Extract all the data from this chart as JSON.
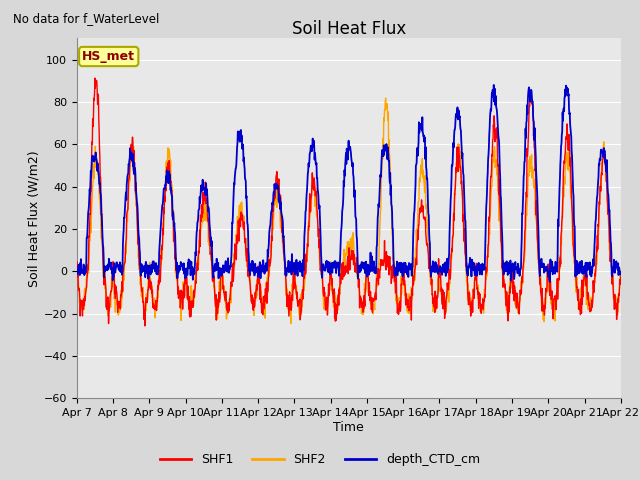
{
  "title": "Soil Heat Flux",
  "xlabel": "Time",
  "ylabel": "Soil Heat Flux (W/m2)",
  "ylim": [
    -60,
    110
  ],
  "yticks": [
    -60,
    -40,
    -20,
    0,
    20,
    40,
    60,
    80,
    100
  ],
  "top_left_text": "No data for f_WaterLevel",
  "annotation_text": "HS_met",
  "legend_labels": [
    "SHF1",
    "SHF2",
    "depth_CTD_cm"
  ],
  "color_shf1": "#ff0000",
  "color_shf2": "#ffa500",
  "color_blue": "#0000cc",
  "xtick_labels": [
    "Apr 7",
    "Apr 8",
    "Apr 9",
    "Apr 10",
    "Apr 11",
    "Apr 12",
    "Apr 13",
    "Apr 14",
    "Apr 15",
    "Apr 16",
    "Apr 17",
    "Apr 18",
    "Apr 19",
    "Apr 20",
    "Apr 21",
    "Apr 22"
  ],
  "title_fontsize": 12,
  "axis_label_fontsize": 9,
  "tick_fontsize": 8,
  "fig_bg": "#d8d8d8",
  "ax_bg": "#e8e8e8"
}
